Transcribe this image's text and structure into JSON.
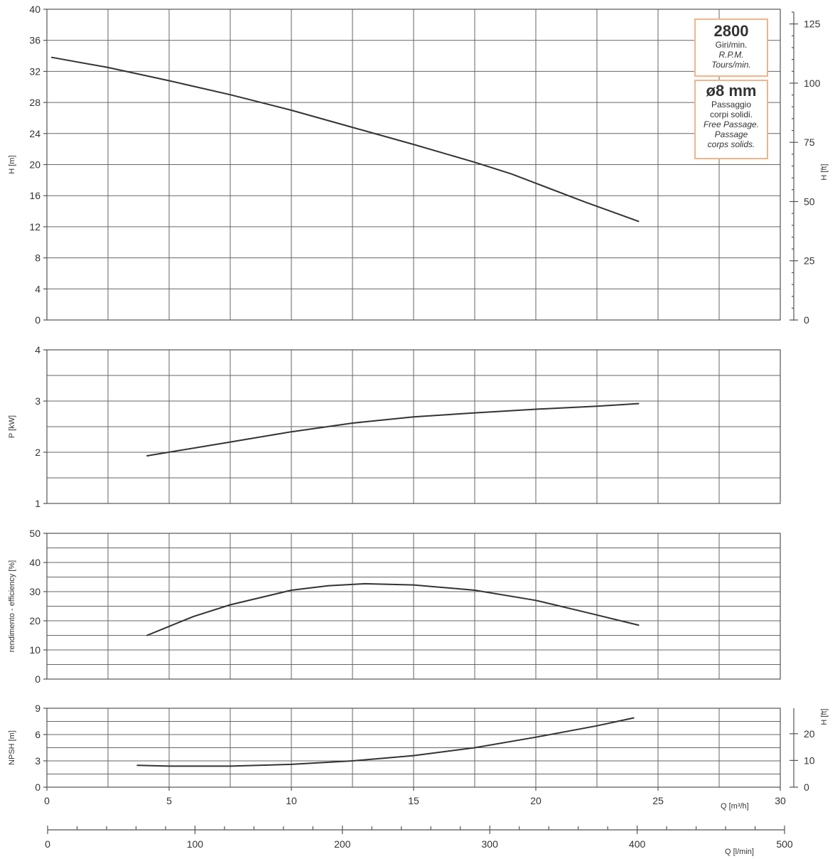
{
  "chart_data": [
    {
      "type": "line",
      "panel": "head",
      "ylabel": "H [m]",
      "ylim": [
        0,
        40
      ],
      "yticks": [
        "0",
        "4",
        "8",
        "12",
        "16",
        "20",
        "24",
        "28",
        "32",
        "36",
        "40"
      ],
      "xlim": [
        0,
        30
      ],
      "y2label": "H [ft]",
      "y2lim": [
        0,
        131.2
      ],
      "y2ticks": [
        "0",
        "25",
        "50",
        "75",
        "100",
        "125"
      ],
      "grid": true,
      "series": [
        {
          "x": [
            0.2,
            2.5,
            5,
            7.5,
            10,
            12.5,
            15,
            17.5,
            19,
            20,
            22,
            24.2
          ],
          "y": [
            33.8,
            32.5,
            30.8,
            29.0,
            27.0,
            24.8,
            22.6,
            20.3,
            18.8,
            17.6,
            15.2,
            12.7
          ]
        }
      ]
    },
    {
      "type": "line",
      "panel": "power",
      "ylabel": "P  [kW]",
      "ylim": [
        1,
        4
      ],
      "yticks": [
        "1",
        "2",
        "3",
        "4"
      ],
      "xlim": [
        0,
        30
      ],
      "grid": true,
      "series": [
        {
          "x": [
            4.1,
            7.5,
            10,
            12.5,
            15,
            17.5,
            20,
            22.5,
            24.2
          ],
          "y": [
            1.93,
            2.2,
            2.4,
            2.57,
            2.69,
            2.77,
            2.84,
            2.9,
            2.95
          ]
        }
      ]
    },
    {
      "type": "line",
      "panel": "efficiency",
      "ylabel": "rendimento - efficiency  [%]",
      "ylim": [
        0,
        50
      ],
      "yticks": [
        "0",
        "10",
        "20",
        "30",
        "40",
        "50"
      ],
      "xlim": [
        0,
        30
      ],
      "grid": true,
      "series": [
        {
          "x": [
            4.1,
            6,
            7.5,
            10,
            11.5,
            13,
            15,
            17.5,
            20,
            22,
            24.2
          ],
          "y": [
            15,
            21.5,
            25.5,
            30.5,
            32,
            32.7,
            32.3,
            30.5,
            27,
            23,
            18.5
          ]
        }
      ]
    },
    {
      "type": "line",
      "panel": "npsh",
      "ylabel": "NPSH  [m]",
      "ylim": [
        0,
        9
      ],
      "yticks": [
        "0",
        "3",
        "6",
        "9"
      ],
      "xlim": [
        0,
        30
      ],
      "xlabel": "Q [m³/h]",
      "xticks": [
        "0",
        "5",
        "10",
        "15",
        "20",
        "25",
        "30"
      ],
      "y2label": "H [ft]",
      "y2ticks": [
        "0",
        "10",
        "20"
      ],
      "grid": true,
      "series": [
        {
          "x": [
            3.7,
            5,
            7.5,
            10,
            12.5,
            15,
            17.5,
            20,
            22.5,
            24
          ],
          "y": [
            2.5,
            2.4,
            2.4,
            2.6,
            3.0,
            3.6,
            4.5,
            5.7,
            7.0,
            7.9
          ]
        }
      ]
    }
  ],
  "secondary_x_axis": {
    "label": "Q [l/min]",
    "range": [
      0,
      500
    ],
    "ticks": [
      "0",
      "100",
      "200",
      "300",
      "400",
      "500"
    ]
  },
  "info_boxes": {
    "rpm_value": "2800",
    "rpm_lines": [
      "Giri/min.",
      "R.P.M.",
      "Tours/min."
    ],
    "passage_value": "ø8 mm",
    "passage_lines": [
      "Passaggio",
      "corpi solidi.",
      "Free Passage.",
      "Passage",
      "corps solids."
    ]
  },
  "colors": {
    "curve": "#333333",
    "grid": "#666666",
    "box_border": "#f0b48c"
  }
}
